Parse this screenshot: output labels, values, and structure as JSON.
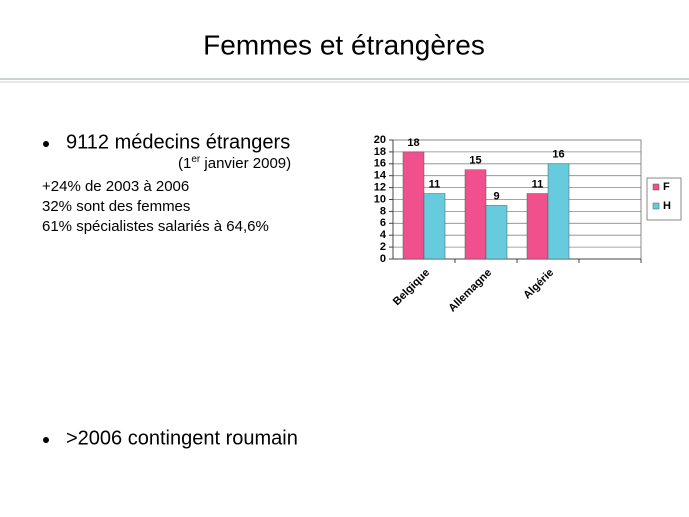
{
  "title": "Femmes et étrangères",
  "bullets": [
    {
      "text": "9112 médecins étrangers",
      "date_prefix": "(1",
      "date_sup": "er",
      "date_suffix": " janvier 2009)",
      "lines": [
        "+24% de 2003 à 2006",
        "32% sont des femmes",
        "61% spécialistes salariés à 64,6%"
      ]
    },
    {
      "text": ">2006 contingent roumain"
    }
  ],
  "chart_data": {
    "type": "bar",
    "categories": [
      "Belgique",
      "Allemagne",
      "Algérie",
      null
    ],
    "series": [
      {
        "name": "F",
        "color": "#f0508c",
        "values": [
          18,
          15,
          11,
          null
        ]
      },
      {
        "name": "H",
        "color": "#66ccdd",
        "values": [
          11,
          9,
          16,
          null
        ]
      }
    ],
    "ylim": [
      0,
      20
    ],
    "yticks": [
      0,
      2,
      4,
      6,
      8,
      10,
      12,
      14,
      16,
      18,
      20
    ],
    "grid": true,
    "legend": "right"
  }
}
